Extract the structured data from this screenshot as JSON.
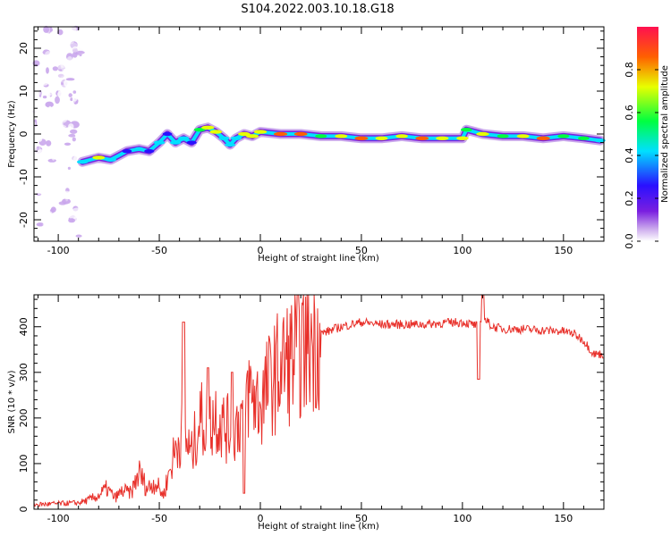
{
  "title": "S104.2022.003.10.18.G18",
  "colors": {
    "snr_line": "#e8302a",
    "colormap": [
      "#ffffff",
      "#c9a6ec",
      "#7a1fe0",
      "#2a10ff",
      "#00e0ff",
      "#00ff40",
      "#e8ff00",
      "#ff6000",
      "#ff1050"
    ]
  },
  "chart_data": [
    {
      "type": "heatmap",
      "xlabel": "Height of straight line (km)",
      "ylabel": "Frequency (Hz)",
      "xlim": [
        -112,
        170
      ],
      "ylim": [
        -25,
        25
      ],
      "x_ticks": [
        -100,
        -50,
        0,
        50,
        100,
        150
      ],
      "y_ticks": [
        -20,
        -10,
        0,
        10,
        20
      ],
      "colorbar": {
        "label": "Normalized spectral amplitude",
        "range": [
          0,
          1
        ],
        "ticks": [
          "0.0",
          "0.2",
          "0.4",
          "0.6",
          "0.8"
        ],
        "tick_values": [
          0.0,
          0.2,
          0.4,
          0.6,
          0.8
        ]
      },
      "ridge": {
        "x": [
          -88,
          -80,
          -74,
          -66,
          -60,
          -55,
          -50,
          -46,
          -42,
          -38,
          -34,
          -30,
          -26,
          -22,
          -18,
          -15,
          -12,
          -8,
          -4,
          0,
          10,
          20,
          30,
          40,
          50,
          60,
          70,
          80,
          90,
          100,
          102,
          110,
          120,
          130,
          140,
          150,
          160,
          168
        ],
        "freq": [
          -6.5,
          -5.5,
          -6.0,
          -4.0,
          -3.5,
          -4.0,
          -2.0,
          0.0,
          -2.0,
          -1.0,
          -2.0,
          1.0,
          1.5,
          0.5,
          -1.0,
          -2.5,
          -1.0,
          0.0,
          -0.5,
          0.5,
          0.0,
          0.0,
          -0.5,
          -0.5,
          -1.0,
          -1.0,
          -0.5,
          -1.0,
          -1.0,
          -1.0,
          1.0,
          0.0,
          -0.5,
          -0.5,
          -1.0,
          -0.5,
          -1.0,
          -1.5
        ],
        "amplitude": [
          0.55,
          0.75,
          0.55,
          0.35,
          0.45,
          0.4,
          0.55,
          0.35,
          0.5,
          0.55,
          0.4,
          0.6,
          0.8,
          0.7,
          0.5,
          0.5,
          0.55,
          0.7,
          0.75,
          0.8,
          0.9,
          0.85,
          0.65,
          0.75,
          0.88,
          0.75,
          0.7,
          0.85,
          0.8,
          0.7,
          0.6,
          0.8,
          0.65,
          0.75,
          0.9,
          0.65,
          0.6,
          0.55
        ]
      }
    },
    {
      "type": "line",
      "xlabel": "Height of straight line (km)",
      "ylabel": "SNR (10 * v/v)",
      "xlim": [
        -112,
        170
      ],
      "ylim": [
        0,
        470
      ],
      "x_ticks": [
        -100,
        -50,
        0,
        50,
        100,
        150
      ],
      "y_ticks": [
        0,
        100,
        200,
        300,
        400
      ],
      "series": [
        {
          "x": [
            -112,
            -100,
            -90,
            -85,
            -80,
            -76,
            -72,
            -68,
            -64,
            -60,
            -56,
            -52,
            -48,
            -44,
            -40,
            -38,
            -36,
            -34,
            -30,
            -26,
            -22,
            -18,
            -14,
            -10,
            -6,
            0,
            5,
            10,
            15,
            20,
            25,
            30,
            40,
            50,
            60,
            70,
            80,
            90,
            100,
            105,
            108,
            110,
            115,
            120,
            130,
            140,
            150,
            155,
            160,
            165,
            170
          ],
          "y": [
            10,
            12,
            14,
            20,
            30,
            45,
            25,
            40,
            35,
            80,
            45,
            60,
            30,
            100,
            160,
            170,
            140,
            120,
            200,
            180,
            210,
            180,
            170,
            200,
            260,
            230,
            280,
            310,
            330,
            350,
            370,
            385,
            400,
            410,
            405,
            405,
            405,
            408,
            410,
            405,
            400,
            420,
            400,
            395,
            395,
            392,
            390,
            385,
            370,
            340,
            340
          ],
          "spikes": [
            {
              "x": -38,
              "y": 410
            },
            {
              "x": -26,
              "y": 310
            },
            {
              "x": -14,
              "y": 300
            },
            {
              "x": -8,
              "y": 35
            },
            {
              "x": 108,
              "y": 285
            },
            {
              "x": 110,
              "y": 470
            }
          ]
        }
      ]
    }
  ]
}
